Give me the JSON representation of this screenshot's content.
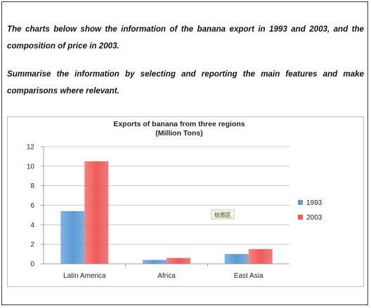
{
  "prompt": {
    "paragraph_1": "The charts below show the information of the banana export in 1993 and 2003, and the composition of price in 2003.",
    "paragraph_2": "Summarise the information by selecting and reporting the main features and make comparisons where relevant."
  },
  "plot_area_label": "绘图区",
  "chart_data": {
    "type": "bar",
    "title": "Exports of banana from three regions",
    "subtitle": "(Million Tons)",
    "categories": [
      "Latin America",
      "Africa",
      "East Asia"
    ],
    "series": [
      {
        "name": "1993",
        "values": [
          5.4,
          0.4,
          1.0
        ],
        "color": "#5b9bd5"
      },
      {
        "name": "2003",
        "values": [
          10.5,
          0.6,
          1.5
        ],
        "color": "#ef5a5a"
      }
    ],
    "ylim": [
      0,
      12
    ],
    "yticks": [
      0,
      2,
      4,
      6,
      8,
      10,
      12
    ],
    "grid": true,
    "legend": "right",
    "xlabel": "",
    "ylabel": ""
  }
}
